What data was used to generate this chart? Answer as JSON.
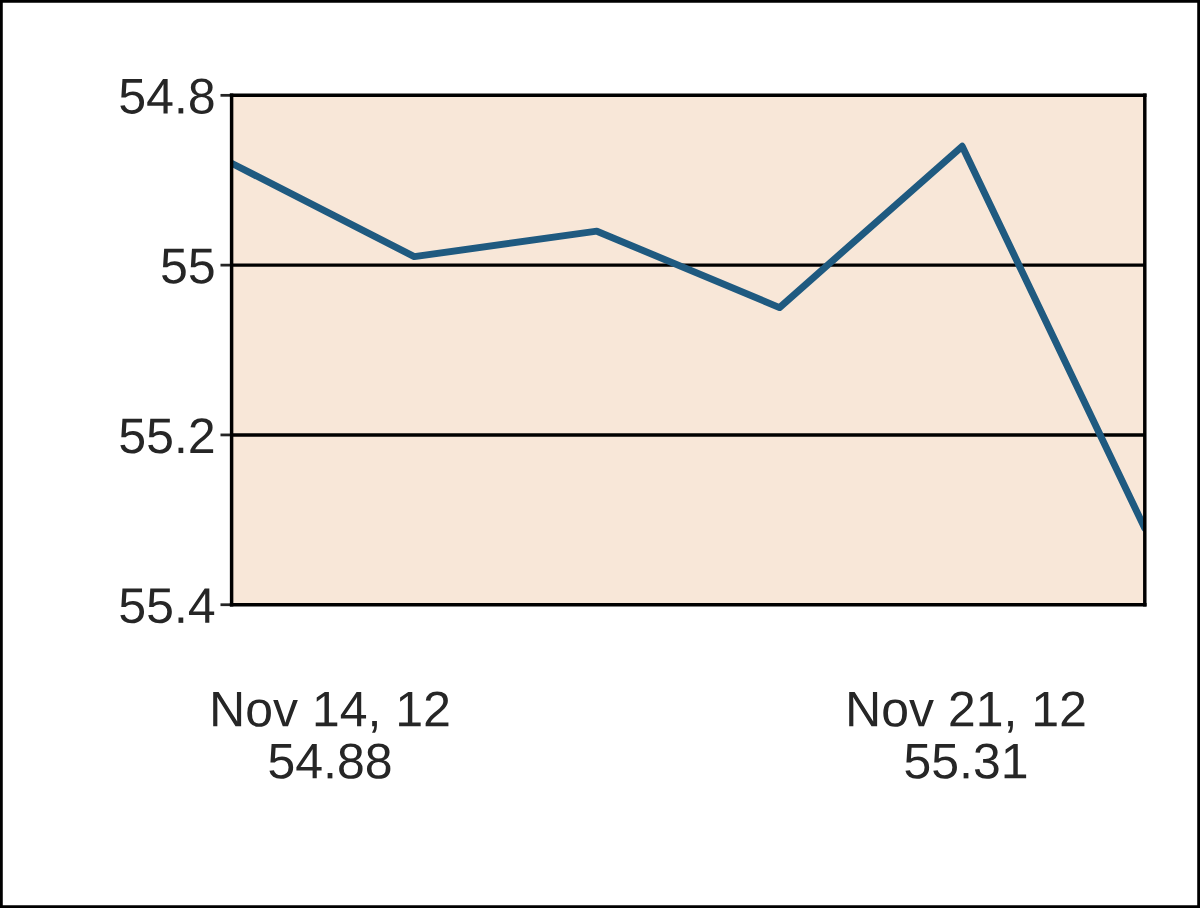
{
  "chart_data": {
    "type": "line",
    "categories": [
      null,
      null,
      null,
      null,
      null,
      null
    ],
    "series": [
      {
        "color": "#1f5a80",
        "values": [
          54.88,
          54.99,
          54.96,
          55.05,
          54.86,
          55.31
        ]
      }
    ],
    "ylim": [
      55.4,
      54.8
    ],
    "yticks": [
      54.8,
      55,
      55.2,
      55.4
    ],
    "grid": "y",
    "tick_labels": "y",
    "marker": "none",
    "line_style": "solid",
    "annotations": [
      "Nov 14, 12\n54.88",
      "Nov 21, 12\n55.31"
    ]
  }
}
